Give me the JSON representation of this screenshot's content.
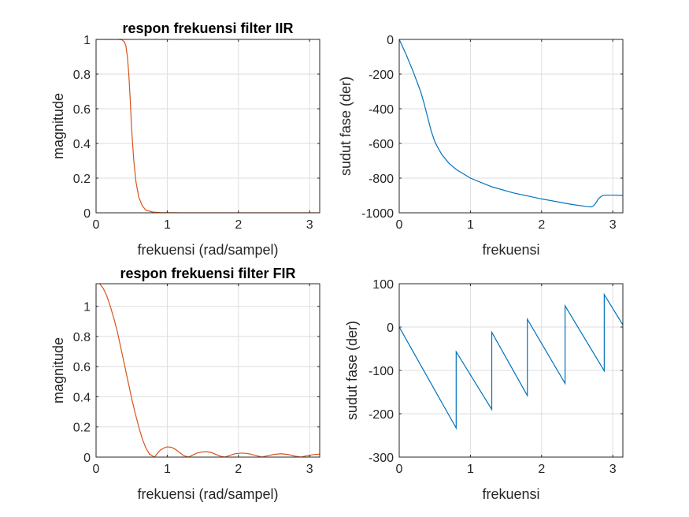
{
  "chart_data": [
    {
      "type": "line",
      "title": "respon frekuensi filter IIR",
      "xlabel": "frekuensi (rad/sampel)",
      "ylabel": "magnitude",
      "xlim": [
        0,
        3.1416
      ],
      "ylim": [
        0,
        1
      ],
      "xticks": [
        0,
        1,
        2,
        3
      ],
      "yticks": [
        0,
        0.2,
        0.4,
        0.6,
        0.8,
        1
      ],
      "ytick_labels": [
        "0",
        "0.2",
        "0.4",
        "0.6",
        "0.8",
        "1"
      ],
      "grid": true,
      "color": "#D95319",
      "series": [
        {
          "x": [
            0,
            0.2,
            0.3,
            0.36,
            0.4,
            0.42,
            0.44,
            0.46,
            0.48,
            0.5,
            0.53,
            0.56,
            0.6,
            0.65,
            0.7,
            0.8,
            0.9,
            1.2,
            2,
            3,
            3.1416
          ],
          "y": [
            1,
            1,
            1,
            0.998,
            0.985,
            0.96,
            0.9,
            0.8,
            0.65,
            0.48,
            0.3,
            0.18,
            0.09,
            0.04,
            0.015,
            0.004,
            0.001,
            0,
            0,
            0,
            0
          ]
        }
      ]
    },
    {
      "type": "line",
      "title": "",
      "xlabel": "frekuensi",
      "ylabel": "sudut fase (der)",
      "xlim": [
        0,
        3.1416
      ],
      "ylim": [
        -1000,
        0
      ],
      "xticks": [
        0,
        1,
        2,
        3
      ],
      "yticks": [
        -1000,
        -800,
        -600,
        -400,
        -200,
        0
      ],
      "ytick_labels": [
        "-1000",
        "-800",
        "-600",
        "-400",
        "-200",
        "0"
      ],
      "grid": true,
      "color": "#0072BD",
      "series": [
        {
          "x": [
            0,
            0.1,
            0.2,
            0.3,
            0.35,
            0.4,
            0.45,
            0.5,
            0.55,
            0.6,
            0.7,
            0.8,
            1.0,
            1.3,
            1.6,
            2.0,
            2.4,
            2.65,
            2.7,
            2.73,
            2.76,
            2.8,
            2.85,
            2.9,
            3.0,
            3.1416
          ],
          "y": [
            0,
            -90,
            -190,
            -300,
            -370,
            -450,
            -530,
            -590,
            -630,
            -665,
            -715,
            -750,
            -800,
            -850,
            -885,
            -920,
            -950,
            -965,
            -966,
            -960,
            -945,
            -918,
            -902,
            -898,
            -898,
            -900
          ]
        }
      ]
    },
    {
      "type": "line",
      "title": "respon frekuensi filter FIR",
      "xlabel": "frekuensi (rad/sampel)",
      "ylabel": "magnitude",
      "xlim": [
        0,
        3.1416
      ],
      "ylim": [
        0,
        1.15
      ],
      "xticks": [
        0,
        1,
        2,
        3
      ],
      "yticks": [
        0,
        0.2,
        0.4,
        0.6,
        0.8,
        1
      ],
      "ytick_labels": [
        "0",
        "0.2",
        "0.4",
        "0.6",
        "0.8",
        "1"
      ],
      "grid": true,
      "color": "#D95319",
      "series": [
        {
          "x": [
            0,
            0.05,
            0.1,
            0.15,
            0.2,
            0.25,
            0.3,
            0.35,
            0.4,
            0.45,
            0.5,
            0.55,
            0.6,
            0.65,
            0.7,
            0.75,
            0.82,
            0.86,
            0.9,
            0.95,
            1.0,
            1.06,
            1.12,
            1.18,
            1.23,
            1.3,
            1.35,
            1.42,
            1.5,
            1.56,
            1.62,
            1.7,
            1.76,
            1.81,
            1.87,
            1.95,
            2.05,
            2.15,
            2.25,
            2.33,
            2.4,
            2.5,
            2.6,
            2.7,
            2.8,
            2.88,
            2.95,
            3.05,
            3.1416
          ],
          "y": [
            1.16,
            1.15,
            1.12,
            1.07,
            1.0,
            0.92,
            0.83,
            0.72,
            0.61,
            0.5,
            0.39,
            0.29,
            0.2,
            0.12,
            0.06,
            0.02,
            0.0,
            0.025,
            0.045,
            0.06,
            0.068,
            0.065,
            0.05,
            0.028,
            0.01,
            0.0,
            0.012,
            0.027,
            0.035,
            0.036,
            0.03,
            0.015,
            0.004,
            0.0,
            0.01,
            0.022,
            0.027,
            0.022,
            0.01,
            0.0,
            0.008,
            0.018,
            0.022,
            0.017,
            0.006,
            0.0,
            0.008,
            0.016,
            0.02
          ]
        }
      ]
    },
    {
      "type": "line",
      "title": "",
      "xlabel": "frekuensi",
      "ylabel": "sudut fase (der)",
      "xlim": [
        0,
        3.1416
      ],
      "ylim": [
        -300,
        100
      ],
      "xticks": [
        0,
        1,
        2,
        3
      ],
      "yticks": [
        -300,
        -200,
        -100,
        0,
        100
      ],
      "ytick_labels": [
        "-300",
        "-200",
        "-100",
        "0",
        "100"
      ],
      "grid": true,
      "color": "#0072BD",
      "series": [
        {
          "x": [
            0,
            0.8,
            0.8,
            1.3,
            1.3,
            1.8,
            1.8,
            2.33,
            2.33,
            2.88,
            2.88,
            3.1416
          ],
          "y": [
            0,
            -233,
            -57,
            -190,
            -12,
            -158,
            18,
            -130,
            49,
            -101,
            75,
            5
          ]
        }
      ]
    }
  ]
}
